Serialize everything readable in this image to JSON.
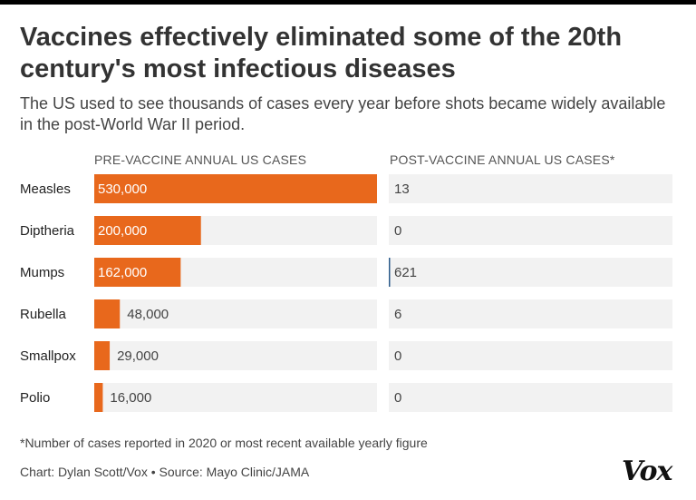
{
  "title": "Vaccines effectively eliminated some of the 20th century's most infectious diseases",
  "subtitle": "The US used to see thousands of cases every year before shots became widely available in the post-World War II period.",
  "chart_data": {
    "type": "bar",
    "orientation": "horizontal",
    "columns": [
      {
        "label": "PRE-VACCINE ANNUAL US CASES"
      },
      {
        "label": "POST-VACCINE ANNUAL US CASES*"
      }
    ],
    "categories": [
      "Measles",
      "Diptheria",
      "Mumps",
      "Rubella",
      "Smallpox",
      "Polio"
    ],
    "pre_values": [
      530000,
      200000,
      162000,
      48000,
      29000,
      16000
    ],
    "pre_labels": [
      "530,000",
      "200,000",
      "162,000",
      "48,000",
      "29,000",
      "16,000"
    ],
    "post_values": [
      13,
      0,
      621,
      6,
      0,
      0
    ],
    "post_labels": [
      "13",
      "0",
      "621",
      "6",
      "0",
      "0"
    ],
    "xlim": [
      0,
      530000
    ],
    "bar_color": "#e8681c",
    "track_color": "#f2f2f2",
    "post_bar_color": "#2a5a8a"
  },
  "footnote": "*Number of cases reported in 2020 or most recent available yearly figure",
  "credit": "Chart: Dylan Scott/Vox • Source: Mayo Clinic/JAMA",
  "logo_text": "Vox"
}
